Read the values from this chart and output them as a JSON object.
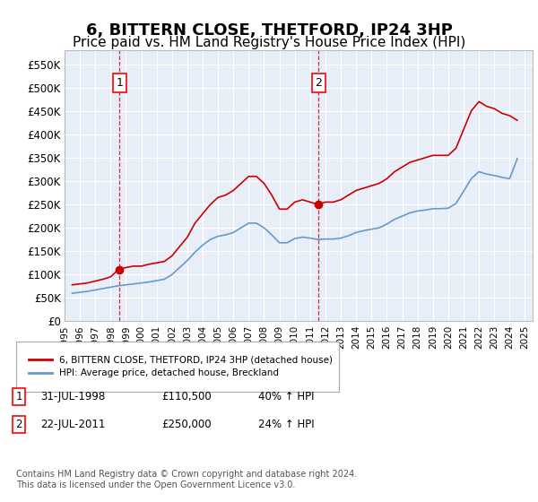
{
  "title": "6, BITTERN CLOSE, THETFORD, IP24 3HP",
  "subtitle": "Price paid vs. HM Land Registry's House Price Index (HPI)",
  "title_fontsize": 13,
  "subtitle_fontsize": 11,
  "background_color": "#ffffff",
  "plot_bg_color": "#e8eef8",
  "grid_color": "#ffffff",
  "ylabel_labels": [
    "£0",
    "£50K",
    "£100K",
    "£150K",
    "£200K",
    "£250K",
    "£300K",
    "£350K",
    "£400K",
    "£450K",
    "£500K",
    "£550K"
  ],
  "ylabel_values": [
    0,
    50000,
    100000,
    150000,
    200000,
    250000,
    300000,
    350000,
    400000,
    450000,
    500000,
    550000
  ],
  "ylim": [
    0,
    580000
  ],
  "xlim_start": 1995.0,
  "xlim_end": 2025.5,
  "xtick_years": [
    1995,
    1996,
    1997,
    1998,
    1999,
    2000,
    2001,
    2002,
    2003,
    2004,
    2005,
    2006,
    2007,
    2008,
    2009,
    2010,
    2011,
    2012,
    2013,
    2014,
    2015,
    2016,
    2017,
    2018,
    2019,
    2020,
    2021,
    2022,
    2023,
    2024,
    2025
  ],
  "sale1_x": 1998.58,
  "sale1_y": 110500,
  "sale1_label": "1",
  "sale2_x": 2011.55,
  "sale2_y": 250000,
  "sale2_label": "2",
  "red_line_color": "#cc0000",
  "blue_line_color": "#6699cc",
  "marker_color": "#cc0000",
  "dashed_line_color": "#cc0000",
  "legend_label_red": "6, BITTERN CLOSE, THETFORD, IP24 3HP (detached house)",
  "legend_label_blue": "HPI: Average price, detached house, Breckland",
  "table_entries": [
    {
      "num": "1",
      "date": "31-JUL-1998",
      "price": "£110,500",
      "change": "40% ↑ HPI"
    },
    {
      "num": "2",
      "date": "22-JUL-2011",
      "price": "£250,000",
      "change": "24% ↑ HPI"
    }
  ],
  "footer": "Contains HM Land Registry data © Crown copyright and database right 2024.\nThis data is licensed under the Open Government Licence v3.0.",
  "red_hpi_data": {
    "years": [
      1995.5,
      1996.0,
      1996.5,
      1997.0,
      1997.5,
      1998.0,
      1998.5,
      1999.0,
      1999.5,
      2000.0,
      2000.5,
      2001.0,
      2001.5,
      2002.0,
      2002.5,
      2003.0,
      2003.5,
      2004.0,
      2004.5,
      2005.0,
      2005.5,
      2006.0,
      2006.5,
      2007.0,
      2007.5,
      2008.0,
      2008.5,
      2009.0,
      2009.5,
      2010.0,
      2010.5,
      2011.0,
      2011.5,
      2012.0,
      2012.5,
      2013.0,
      2013.5,
      2014.0,
      2014.5,
      2015.0,
      2015.5,
      2016.0,
      2016.5,
      2017.0,
      2017.5,
      2018.0,
      2018.5,
      2019.0,
      2019.5,
      2020.0,
      2020.5,
      2021.0,
      2021.5,
      2022.0,
      2022.5,
      2023.0,
      2023.5,
      2024.0,
      2024.5
    ],
    "values": [
      78000,
      80000,
      82000,
      86000,
      90000,
      95000,
      110500,
      115000,
      118000,
      118000,
      122000,
      125000,
      128000,
      140000,
      160000,
      180000,
      210000,
      230000,
      250000,
      265000,
      270000,
      280000,
      295000,
      310000,
      310000,
      295000,
      270000,
      240000,
      240000,
      255000,
      260000,
      255000,
      250000,
      255000,
      255000,
      260000,
      270000,
      280000,
      285000,
      290000,
      295000,
      305000,
      320000,
      330000,
      340000,
      345000,
      350000,
      355000,
      355000,
      355000,
      370000,
      410000,
      450000,
      470000,
      460000,
      455000,
      445000,
      440000,
      430000
    ]
  },
  "blue_hpi_data": {
    "years": [
      1995.5,
      1996.0,
      1996.5,
      1997.0,
      1997.5,
      1998.0,
      1998.5,
      1999.0,
      1999.5,
      2000.0,
      2000.5,
      2001.0,
      2001.5,
      2002.0,
      2002.5,
      2003.0,
      2003.5,
      2004.0,
      2004.5,
      2005.0,
      2005.5,
      2006.0,
      2006.5,
      2007.0,
      2007.5,
      2008.0,
      2008.5,
      2009.0,
      2009.5,
      2010.0,
      2010.5,
      2011.0,
      2011.5,
      2012.0,
      2012.5,
      2013.0,
      2013.5,
      2014.0,
      2014.5,
      2015.0,
      2015.5,
      2016.0,
      2016.5,
      2017.0,
      2017.5,
      2018.0,
      2018.5,
      2019.0,
      2019.5,
      2020.0,
      2020.5,
      2021.0,
      2021.5,
      2022.0,
      2022.5,
      2023.0,
      2023.5,
      2024.0,
      2024.5
    ],
    "values": [
      60000,
      62000,
      64000,
      67000,
      70000,
      73000,
      76000,
      78000,
      80000,
      82000,
      84000,
      87000,
      90000,
      100000,
      115000,
      130000,
      148000,
      163000,
      175000,
      182000,
      185000,
      190000,
      200000,
      210000,
      210000,
      200000,
      185000,
      168000,
      168000,
      177000,
      180000,
      178000,
      175000,
      176000,
      176000,
      178000,
      183000,
      190000,
      194000,
      197000,
      200000,
      208000,
      218000,
      225000,
      232000,
      236000,
      238000,
      241000,
      241000,
      242000,
      252000,
      278000,
      305000,
      320000,
      315000,
      312000,
      308000,
      305000,
      348000
    ]
  }
}
